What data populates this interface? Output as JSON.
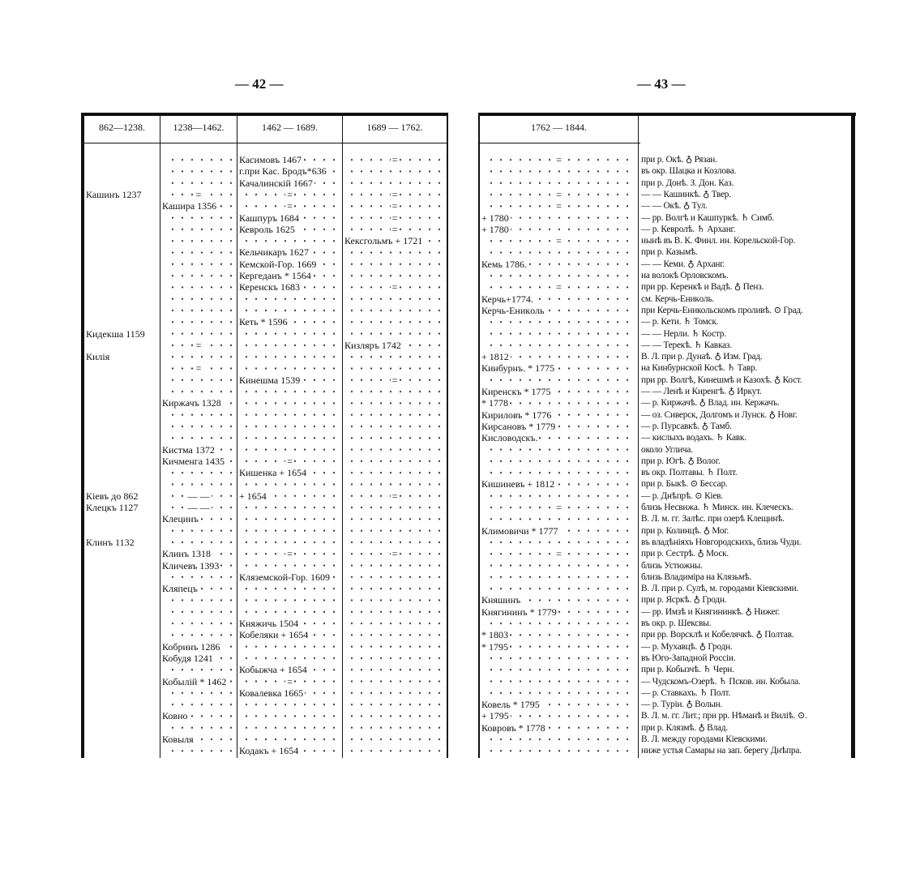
{
  "left_page": {
    "page_number": "— 42 —",
    "headers": [
      "862—1238.",
      "1238—1462.",
      "1462 — 1689.",
      "1689 — 1762."
    ],
    "rows": [
      [
        null,
        null,
        "Касимовъ 1467",
        "="
      ],
      [
        null,
        null,
        "г.при Кас. Бродъ*636",
        null
      ],
      [
        null,
        null,
        "Качалинскій 1667",
        null
      ],
      [
        "Кашинъ 1237",
        "=",
        "=",
        "="
      ],
      [
        null,
        "Кашира 1356",
        "=",
        "="
      ],
      [
        null,
        null,
        "Кашпуръ 1684",
        "="
      ],
      [
        null,
        null,
        "Кевроль 1625",
        "="
      ],
      [
        null,
        null,
        null,
        "Кексгольмъ + 1721"
      ],
      [
        null,
        null,
        "Кельчикаръ 1627",
        null
      ],
      [
        null,
        null,
        "Кемской-Гор. 1669",
        null
      ],
      [
        null,
        null,
        "Кергеданъ * 1564",
        null
      ],
      [
        null,
        null,
        "Керенскъ 1683",
        "="
      ],
      [
        null,
        null,
        null,
        null
      ],
      [
        null,
        null,
        null,
        null
      ],
      [
        null,
        null,
        "Кеть * 1596",
        null
      ],
      [
        "Кидекша 1159",
        null,
        null,
        null
      ],
      [
        null,
        "=",
        null,
        "Кизляръ 1742"
      ],
      [
        "Килія",
        null,
        null,
        null
      ],
      [
        null,
        "=",
        null,
        null
      ],
      [
        null,
        null,
        "Кинешма 1539",
        "="
      ],
      [
        null,
        null,
        null,
        null
      ],
      [
        null,
        "Киржачъ 1328",
        null,
        null
      ],
      [
        null,
        null,
        null,
        null
      ],
      [
        null,
        null,
        null,
        null
      ],
      [
        null,
        null,
        null,
        null
      ],
      [
        null,
        "Кистма 1372",
        null,
        null
      ],
      [
        null,
        "Кичменга 1435",
        "=",
        null
      ],
      [
        null,
        null,
        "Кишенка + 1654",
        null
      ],
      [
        null,
        null,
        null,
        null
      ],
      [
        "Кіевъ до 862",
        "— —",
        "+ 1654",
        "="
      ],
      [
        "Клецкъ 1127",
        "— —",
        null,
        null
      ],
      [
        null,
        "Клецинъ",
        null,
        null
      ],
      [
        null,
        null,
        null,
        null
      ],
      [
        "Клинъ 1132",
        null,
        null,
        null
      ],
      [
        null,
        "Клинъ 1318",
        "=",
        "="
      ],
      [
        null,
        "Кличевъ 1393",
        null,
        null
      ],
      [
        null,
        null,
        "Клязeмской-Гор. 1609",
        null
      ],
      [
        null,
        "Кляпецъ",
        null,
        null
      ],
      [
        null,
        null,
        null,
        null
      ],
      [
        null,
        null,
        null,
        null
      ],
      [
        null,
        null,
        "Княжичь 1504",
        null
      ],
      [
        null,
        null,
        "Кобеляки + 1654",
        null
      ],
      [
        null,
        "Кобринъ 1286",
        null,
        null
      ],
      [
        null,
        "Кобудя 1241",
        null,
        null
      ],
      [
        null,
        null,
        "Кобыжча + 1654",
        null
      ],
      [
        null,
        "Кобылій * 1462",
        "=",
        null
      ],
      [
        null,
        null,
        "Ковалевка 1665",
        null
      ],
      [
        null,
        null,
        null,
        null
      ],
      [
        null,
        "Ковно",
        null,
        null
      ],
      [
        null,
        null,
        null,
        null
      ],
      [
        null,
        "Ковыля",
        null,
        null
      ],
      [
        null,
        null,
        "Кодакъ + 1654",
        null
      ]
    ]
  },
  "right_page": {
    "page_number": "— 43 —",
    "headers": [
      "1762 — 1844."
    ],
    "rows": [
      [
        "=",
        "при р. Окѣ. ♁ Рязан."
      ],
      [
        null,
        "въ окр. Шацка и Козлова."
      ],
      [
        null,
        "при р. Донѣ. З. Дон. Каз."
      ],
      [
        "=",
        "— — Кашинкѣ. ♁ Твер."
      ],
      [
        "=",
        "— — Окѣ. ♁ Тул."
      ],
      [
        "+ 1780",
        "— рр. Волгѣ и Кашпуркѣ. ♄ Симб."
      ],
      [
        "+ 1780",
        "— р. Кевролѣ. ♄ Арханг."
      ],
      [
        "=",
        "нынѣ въ В. К. Финл. ин. Корельской-Гор."
      ],
      [
        null,
        "при р. Казымѣ."
      ],
      [
        "Кемь 1786.",
        "— — Кеми. ♁ Арханг."
      ],
      [
        null,
        "на волокѣ Орловскомъ."
      ],
      [
        "=",
        "при рр. Керенкѣ и Вадѣ. ♁ Пенз."
      ],
      [
        "Керчь+1774.",
        "см. Керчь-Еникoль."
      ],
      [
        "Керчь-Еникoль",
        "при Керчь-Еникольскомъ проливѣ. ⊙ Град."
      ],
      [
        null,
        "— р. Кети. ♄ Томск."
      ],
      [
        null,
        "— — Нерли. ♄ Костр."
      ],
      [
        null,
        "— — Терекѣ. ♄ Кавказ."
      ],
      [
        "+ 1812",
        "В. Л. при р. Дунаѣ. ♁ Изм. Град."
      ],
      [
        "Кинбурнъ. * 1775",
        "на Кинбурнской Косѣ. ♄ Тавр."
      ],
      [
        null,
        "при рр. Волгѣ, Кинешмѣ и Казохѣ. ♁ Кост."
      ],
      [
        "Киренскъ * 1775",
        "— — Ленѣ и Киренгѣ. ♁ Иркут."
      ],
      [
        "* 1778",
        "— р. Киржачѣ. ♁ Влад. ин. Кержачъ."
      ],
      [
        "Кириловъ * 1776",
        "— оз. Сиверск, Долгомъ и Лунск. ♁ Новг."
      ],
      [
        "Кирсановъ * 1779",
        "— р. Пурсавкѣ. ♁ Тамб."
      ],
      [
        "Кисловодскъ.",
        "— кислыхъ водахъ. ♄ Кавк."
      ],
      [
        null,
        "около Углича."
      ],
      [
        null,
        "при р. Югѣ. ♁ Волог."
      ],
      [
        null,
        "въ окр. Полтавы. ♄ Полт."
      ],
      [
        "Кишиневъ + 1812",
        "при р. Быкѣ. ⊙ Бессар."
      ],
      [
        null,
        "— р. Днѣпрѣ. ⊙ Кіев."
      ],
      [
        "=",
        "близь Несвижа. ♄ Минск. ин. Клеческъ."
      ],
      [
        null,
        "В. Л. м. гг. Залѣс. при озерѣ Клещинѣ."
      ],
      [
        "Климовичи * 1777",
        "при р. Колинцѣ. ♁ Мог."
      ],
      [
        null,
        "въ владѣніяхъ Новгородскихъ, близь Чуди."
      ],
      [
        "=",
        "при р. Сестрѣ. ♁ Моск."
      ],
      [
        null,
        "близь Устюжны."
      ],
      [
        null,
        "близь Владиміра на Клязьмѣ."
      ],
      [
        null,
        "В. Л. при р. Сулѣ, м. городами Кіевскими."
      ],
      [
        "Княшинъ",
        "при р. Ясркѣ. ♁ Гродн."
      ],
      [
        "Княгининъ * 1779",
        "— рр. Имзѣ и Княгининкѣ. ♁ Нижег."
      ],
      [
        null,
        "въ окр. р. Шексвы."
      ],
      [
        "* 1803",
        "при рр. Ворсклѣ и Кобелячкѣ. ♁ Полтав."
      ],
      [
        "* 1795",
        "— р. Мухавцѣ. ♁ Гродн."
      ],
      [
        null,
        "въ Юго-Западной Россіи."
      ],
      [
        null,
        "при р. Кобызчѣ. ♄ Черн."
      ],
      [
        null,
        "— Чудскомъ-Озерѣ. ♄ Псков. ин. Кобыла."
      ],
      [
        null,
        "— р. Ставкахъ. ♄ Полт."
      ],
      [
        "Ковель * 1795",
        "— р. Туріи. ♁ Волын."
      ],
      [
        "+ 1795",
        "В. Л. м. гг. Лит.; при рр. Нѣманѣ и Виліѣ. ⊙."
      ],
      [
        "Ковровъ * 1778",
        "при р. Клязмѣ. ♁ Влад."
      ],
      [
        null,
        "В. Л. между городами Кіевскими."
      ],
      [
        null,
        "ниже устья Самары на зап. берегу Днѣпра."
      ]
    ]
  }
}
